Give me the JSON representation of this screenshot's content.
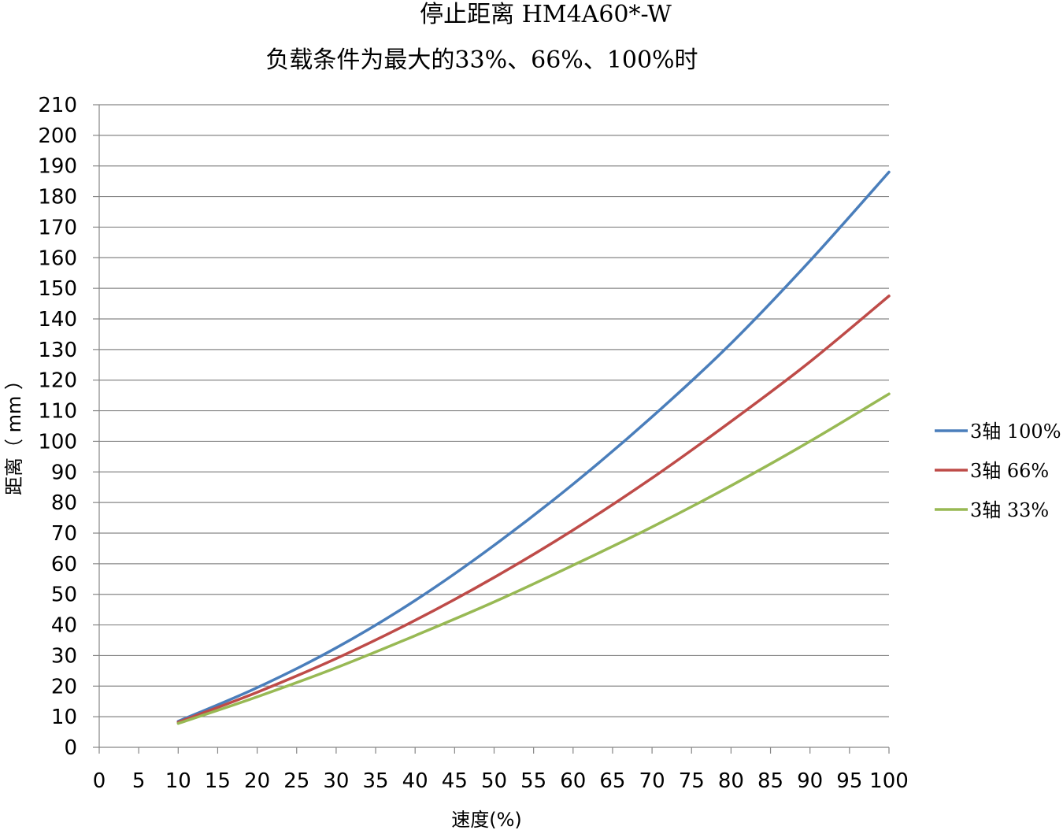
{
  "chart_data": {
    "type": "line",
    "title": "停止距离 HM4A60*-W",
    "subtitle": "负载条件为最大的33%、66%、100%时",
    "xlabel": "速度(%)",
    "ylabel": "距离（ mm ）",
    "xlim": [
      0,
      100
    ],
    "ylim": [
      0,
      210
    ],
    "x_ticks": [
      0,
      5,
      10,
      15,
      20,
      25,
      30,
      35,
      40,
      45,
      50,
      55,
      60,
      65,
      70,
      75,
      80,
      85,
      90,
      95,
      100
    ],
    "y_ticks": [
      0,
      10,
      20,
      30,
      40,
      50,
      60,
      70,
      80,
      90,
      100,
      110,
      120,
      130,
      140,
      150,
      160,
      170,
      180,
      190,
      200,
      210
    ],
    "grid": "horizontal",
    "legend_position": "right",
    "x": [
      10,
      20,
      30,
      40,
      50,
      60,
      70,
      80,
      90,
      100
    ],
    "series": [
      {
        "name": "3轴 100%",
        "color": "#4a7ebb",
        "values": [
          8.5,
          19.5,
          32.5,
          48,
          66,
          86,
          108,
          132,
          159,
          188
        ]
      },
      {
        "name": "3轴 66%",
        "color": "#be4b48",
        "values": [
          8.2,
          18,
          29,
          41.5,
          55.5,
          71,
          88,
          106.5,
          126,
          147.5
        ]
      },
      {
        "name": "3轴 33%",
        "color": "#98b954",
        "values": [
          7.8,
          16.5,
          26,
          36.5,
          47.5,
          59.5,
          72,
          85.5,
          100,
          115.5
        ]
      }
    ]
  }
}
